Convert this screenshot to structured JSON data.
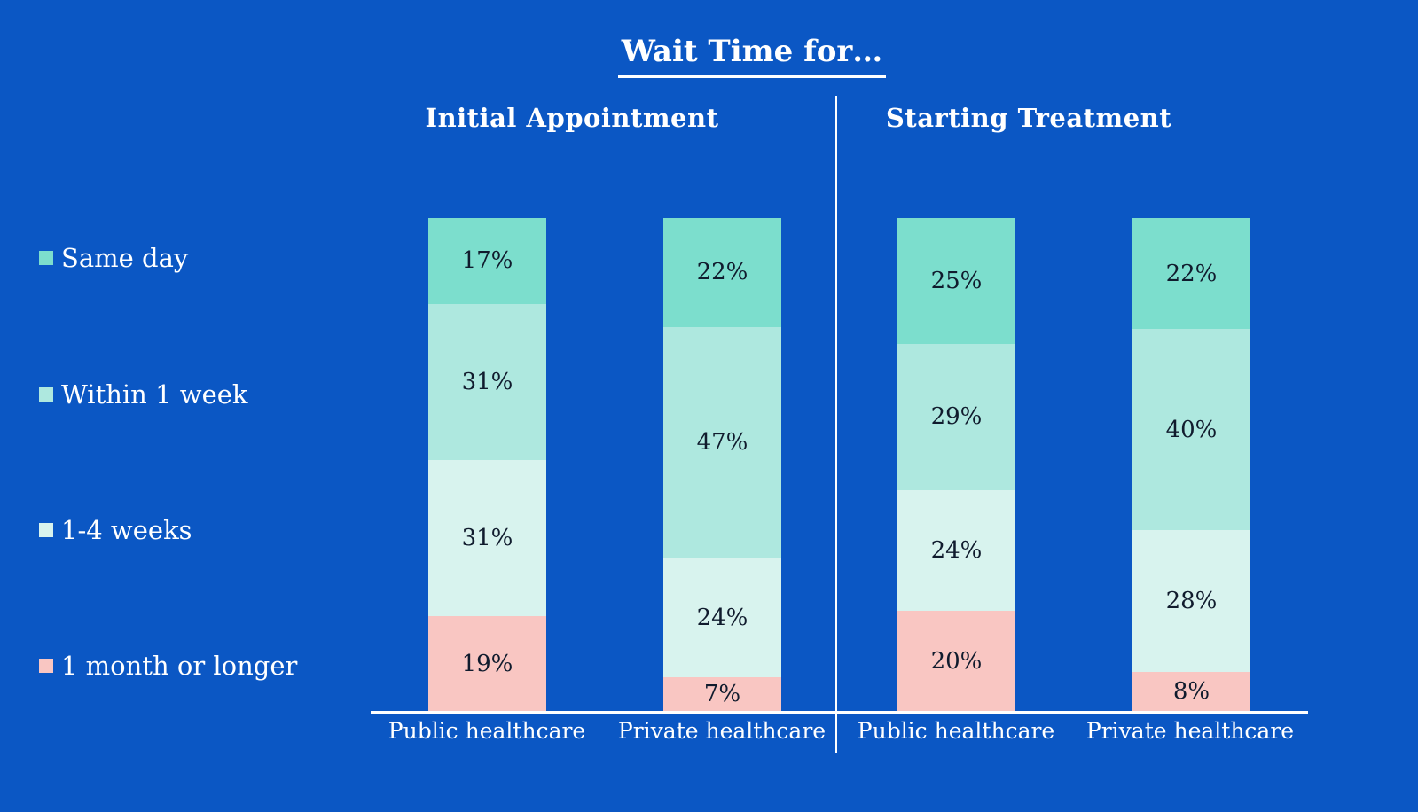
{
  "colors": {
    "background": "#0B57C4",
    "text_light": "#FFFFFF",
    "text_dark": "#101B2D",
    "axis_line": "#FFFFFF"
  },
  "chart_data": {
    "type": "bar",
    "stacked": true,
    "percent_stacked": true,
    "title": "Wait Time for…",
    "unit": "%",
    "legend_position": "left",
    "grid": false,
    "legend": [
      "Same day",
      "Within 1 week",
      "1-4 weeks",
      "1 month or longer"
    ],
    "colors": [
      "#7CDECD",
      "#AEE8DF",
      "#D8F3EE",
      "#F9C6C2"
    ],
    "groups": [
      {
        "label": "Initial Appointment",
        "categories": [
          "Public healthcare",
          "Private healthcare"
        ],
        "series": [
          {
            "name": "Same day",
            "values": [
              17,
              22
            ]
          },
          {
            "name": "Within 1 week",
            "values": [
              31,
              47
            ]
          },
          {
            "name": "1-4 weeks",
            "values": [
              31,
              24
            ]
          },
          {
            "name": "1 month or longer",
            "values": [
              19,
              7
            ]
          }
        ]
      },
      {
        "label": "Starting Treatment",
        "categories": [
          "Public healthcare",
          "Private healthcare"
        ],
        "series": [
          {
            "name": "Same day",
            "values": [
              25,
              22
            ]
          },
          {
            "name": "Within 1 week",
            "values": [
              29,
              40
            ]
          },
          {
            "name": "1-4 weeks",
            "values": [
              24,
              28
            ]
          },
          {
            "name": "1 month or longer",
            "values": [
              20,
              8
            ]
          }
        ]
      }
    ]
  }
}
